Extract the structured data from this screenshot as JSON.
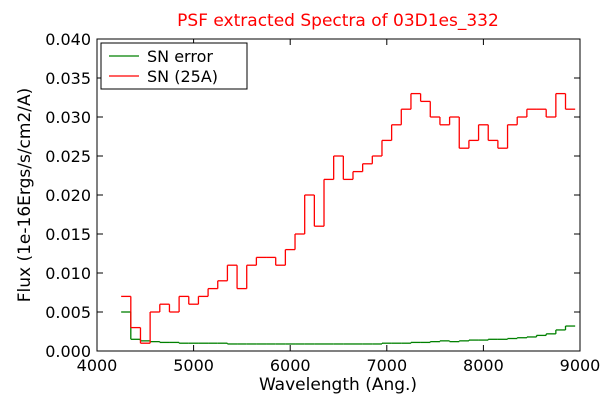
{
  "chart_data": {
    "type": "line",
    "drawstyle": "steps",
    "title": "PSF extracted Spectra of 03D1es_332",
    "title_color": "#ff0000",
    "xlabel": "Wavelength (Ang.)",
    "ylabel": "Flux (1e-16Ergs/s/cm2/A)",
    "legend": "upper left",
    "grid": false,
    "xlim": [
      4000,
      9000
    ],
    "xticks": [
      4000,
      5000,
      6000,
      7000,
      8000,
      9000
    ],
    "ylim": [
      0,
      0.04
    ],
    "yticks": [
      {
        "value": 0,
        "label": "0.000"
      },
      {
        "value": 0.005,
        "label": "0.005"
      },
      {
        "value": 0.01,
        "label": "0.010"
      },
      {
        "value": 0.015,
        "label": "0.015"
      },
      {
        "value": 0.02,
        "label": "0.020"
      },
      {
        "value": 0.025,
        "label": "0.025"
      },
      {
        "value": 0.03,
        "label": "0.030"
      },
      {
        "value": 0.035,
        "label": "0.035"
      },
      {
        "value": 0.04,
        "label": "0.040"
      }
    ],
    "x": [
      4250,
      4350,
      4450,
      4550,
      4650,
      4750,
      4850,
      4950,
      5050,
      5150,
      5250,
      5350,
      5450,
      5550,
      5650,
      5750,
      5850,
      5950,
      6050,
      6150,
      6250,
      6350,
      6450,
      6550,
      6650,
      6750,
      6850,
      6950,
      7050,
      7150,
      7250,
      7350,
      7450,
      7550,
      7650,
      7750,
      7850,
      7950,
      8050,
      8150,
      8250,
      8350,
      8450,
      8550,
      8650,
      8750,
      8850
    ],
    "series": [
      {
        "name": "SN error",
        "color": "#008000",
        "values": [
          0.005,
          0.0015,
          0.0013,
          0.0012,
          0.0011,
          0.0011,
          0.001,
          0.001,
          0.001,
          0.001,
          0.001,
          0.0009,
          0.0009,
          0.0009,
          0.0009,
          0.0009,
          0.0009,
          0.0009,
          0.0009,
          0.0009,
          0.0009,
          0.0009,
          0.0009,
          0.0009,
          0.0009,
          0.0009,
          0.0009,
          0.001,
          0.001,
          0.001,
          0.0011,
          0.0011,
          0.0012,
          0.0013,
          0.0012,
          0.0013,
          0.0014,
          0.0014,
          0.0015,
          0.0015,
          0.0016,
          0.0017,
          0.0018,
          0.002,
          0.0022,
          0.0027,
          0.0032
        ]
      },
      {
        "name": "SN (25A)",
        "color": "#ff0000",
        "values": [
          0.007,
          0.003,
          0.001,
          0.005,
          0.006,
          0.005,
          0.007,
          0.006,
          0.007,
          0.008,
          0.009,
          0.011,
          0.008,
          0.011,
          0.012,
          0.012,
          0.011,
          0.013,
          0.015,
          0.02,
          0.016,
          0.022,
          0.025,
          0.022,
          0.023,
          0.024,
          0.025,
          0.027,
          0.029,
          0.031,
          0.033,
          0.032,
          0.03,
          0.029,
          0.03,
          0.026,
          0.027,
          0.029,
          0.027,
          0.026,
          0.029,
          0.03,
          0.031,
          0.031,
          0.03,
          0.033,
          0.031
        ]
      }
    ]
  }
}
